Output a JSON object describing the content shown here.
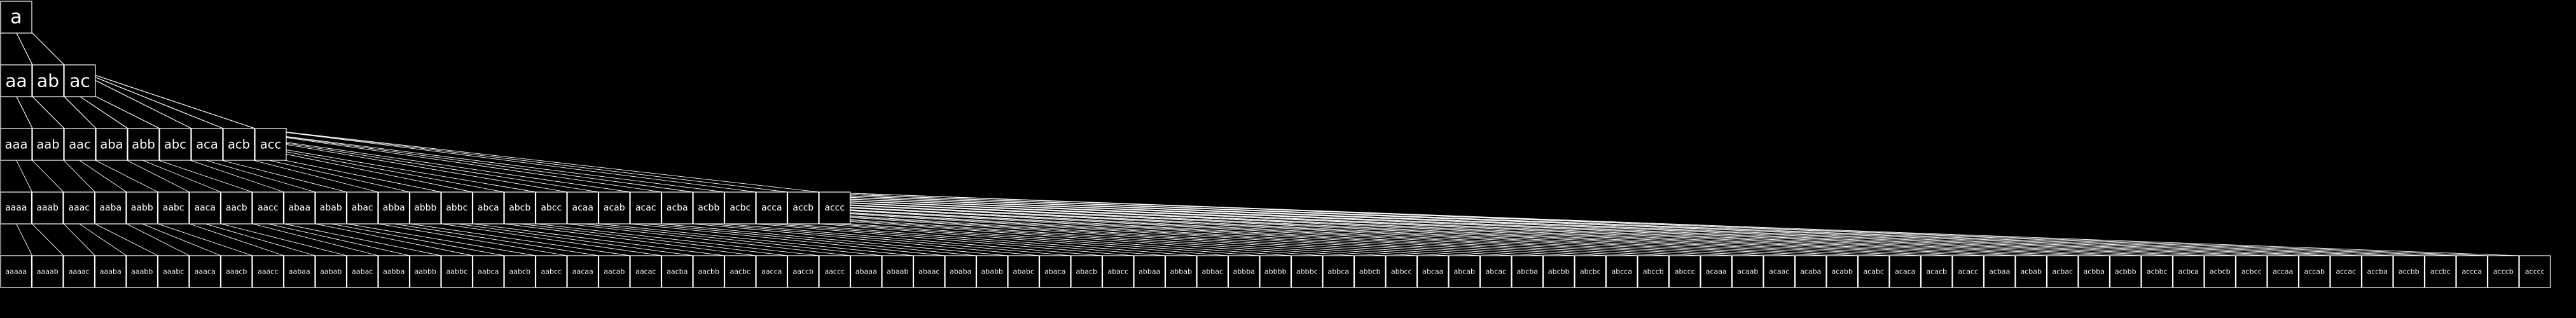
{
  "diagram": {
    "type": "tree",
    "alphabet": [
      "a",
      "b",
      "c"
    ],
    "root": "a",
    "levels": [
      [
        "a"
      ],
      [
        "aa",
        "ab",
        "ac"
      ],
      [
        "aaa",
        "aab",
        "aac",
        "aba",
        "abb",
        "abc",
        "aca",
        "acb",
        "acc"
      ],
      [
        "aaaa",
        "aaab",
        "aaac",
        "aaba",
        "aabb",
        "aabc",
        "aaca",
        "aacb",
        "aacc",
        "abaa",
        "abab",
        "abac",
        "abba",
        "abbb",
        "abbc",
        "abca",
        "abcb",
        "abcc",
        "acaa",
        "acab",
        "acac",
        "acba",
        "acbb",
        "acbc",
        "acca",
        "accb",
        "accc"
      ],
      [
        "aaaaa",
        "aaaab",
        "aaaac",
        "aaaba",
        "aaabb",
        "aaabc",
        "aaaca",
        "aaacb",
        "aaacc",
        "aabaa",
        "aabab",
        "aabac",
        "aabba",
        "aabbb",
        "aabbc",
        "aabca",
        "aabcb",
        "aabcc",
        "aacaa",
        "aacab",
        "aacac",
        "aacba",
        "aacbb",
        "aacbc",
        "aacca",
        "aaccb",
        "aaccc",
        "abaaa",
        "abaab",
        "abaac",
        "ababa",
        "ababb",
        "ababc",
        "abaca",
        "abacb",
        "abacc",
        "abbaa",
        "abbab",
        "abbac",
        "abbba",
        "abbbb",
        "abbbc",
        "abbca",
        "abbcb",
        "abbcc",
        "abcaa",
        "abcab",
        "abcac",
        "abcba",
        "abcbb",
        "abcbc",
        "abcca",
        "abccb",
        "abccc",
        "acaaa",
        "acaab",
        "acaac",
        "acaba",
        "acabb",
        "acabc",
        "acaca",
        "acacb",
        "acacc",
        "acbaa",
        "acbab",
        "acbac",
        "acbba",
        "acbbb",
        "acbbc",
        "acbca",
        "acbcb",
        "acbcc",
        "accaa",
        "accab",
        "accac",
        "accba",
        "accbb",
        "accbc",
        "accca",
        "acccb",
        "acccc"
      ]
    ],
    "colors": {
      "background": "#000000",
      "stroke": "#ffffff",
      "text": "#ffffff"
    }
  }
}
